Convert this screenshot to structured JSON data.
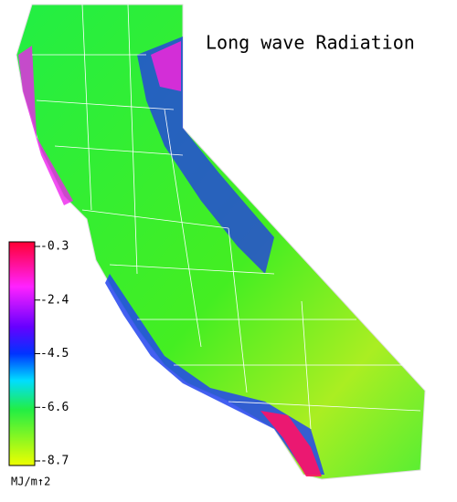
{
  "title": "Long wave Radiation",
  "colorbar": {
    "ticks": [
      -0.3,
      -2.4,
      -4.5,
      -6.6,
      -8.7
    ],
    "unit": "MJ/m↑2"
  }
}
